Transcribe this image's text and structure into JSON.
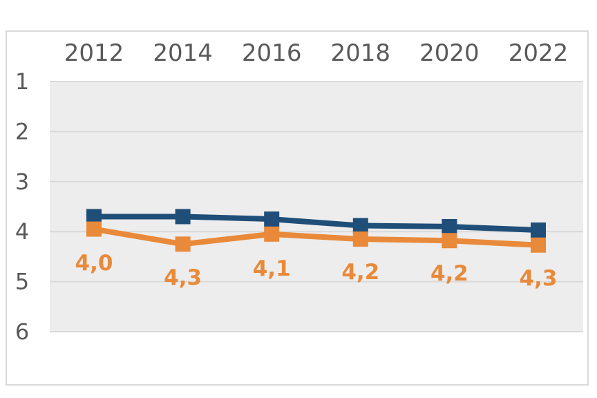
{
  "chart_data": {
    "type": "line",
    "x": [
      "2012",
      "2014",
      "2016",
      "2018",
      "2020",
      "2022"
    ],
    "y_ticks": [
      "1",
      "2",
      "3",
      "4",
      "5",
      "6"
    ],
    "ylim": [
      1,
      6
    ],
    "y_inverted": true,
    "x_axis_position": "top",
    "grid": true,
    "series": [
      {
        "values": [
          3.7,
          3.7,
          3.75,
          3.88,
          3.9,
          3.97
        ],
        "color": "#1f4e79"
      },
      {
        "values": [
          3.95,
          4.25,
          4.05,
          4.15,
          4.18,
          4.27
        ],
        "color": "#e88a3a",
        "labels": [
          "4,0",
          "4,3",
          "4,1",
          "4,2",
          "4,2",
          "4,3"
        ]
      }
    ],
    "plot_background": "#ededed",
    "gridline_color": "#d9d9d9",
    "tick_color": "#595959"
  }
}
